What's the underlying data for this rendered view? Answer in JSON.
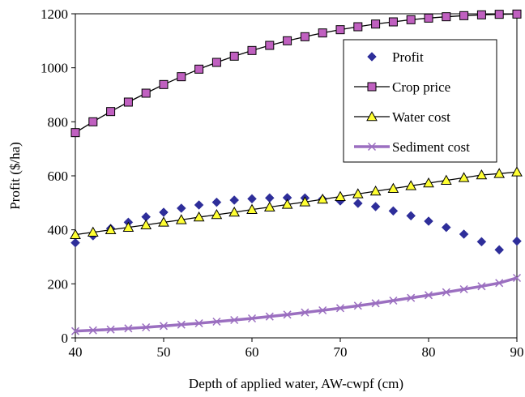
{
  "chart_data": {
    "type": "line",
    "title": "",
    "xlabel": "Depth  of applied water, AW-cwpf (cm)",
    "ylabel": "Profit ($/ha)",
    "xlim": [
      40,
      90
    ],
    "ylim": [
      0,
      1200
    ],
    "x_ticks": [
      "40",
      "50",
      "60",
      "70",
      "80",
      "90"
    ],
    "y_ticks": [
      "0",
      "200",
      "400",
      "600",
      "800",
      "1000",
      "1200"
    ],
    "grid": false,
    "legend_position": "upper-right (inside plot)",
    "x": [
      40,
      42,
      44,
      46,
      48,
      50,
      52,
      54,
      56,
      58,
      60,
      62,
      64,
      66,
      68,
      70,
      72,
      74,
      76,
      78,
      80,
      82,
      84,
      86,
      88,
      90
    ],
    "series": [
      {
        "name": "Profit",
        "marker": "diamond",
        "line": false,
        "color": "#2e2e9a",
        "values": [
          352,
          378,
          405,
          428,
          448,
          465,
          480,
          492,
          502,
          510,
          515,
          518,
          519,
          518,
          514,
          507,
          498,
          486,
          470,
          452,
          432,
          409,
          384,
          356,
          326,
          358
        ]
      },
      {
        "name": "Crop price",
        "marker": "square",
        "line": true,
        "color": "#000000",
        "marker_fill": "#c060c0",
        "values": [
          760,
          800,
          838,
          873,
          906,
          938,
          967,
          995,
          1020,
          1043,
          1064,
          1083,
          1100,
          1115,
          1129,
          1141,
          1152,
          1162,
          1170,
          1178,
          1184,
          1189,
          1193,
          1196,
          1198,
          1199
        ]
      },
      {
        "name": "Water cost",
        "marker": "triangle",
        "line": true,
        "color": "#000000",
        "marker_fill": "#ffff33",
        "values": [
          382,
          391,
          400,
          409,
          418,
          428,
          437,
          447,
          456,
          465,
          475,
          484,
          494,
          503,
          513,
          523,
          533,
          543,
          553,
          563,
          573,
          583,
          593,
          603,
          608,
          614
        ]
      },
      {
        "name": "Sediment cost",
        "marker": "x",
        "line": true,
        "color": "#9b6fc0",
        "values": [
          25,
          28,
          31,
          35,
          39,
          44,
          49,
          54,
          60,
          66,
          72,
          79,
          86,
          94,
          102,
          110,
          119,
          128,
          138,
          148,
          158,
          169,
          180,
          191,
          203,
          222
        ]
      }
    ]
  }
}
